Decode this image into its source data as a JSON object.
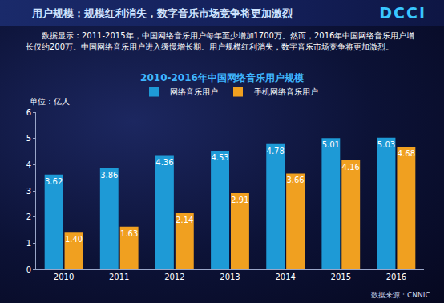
{
  "chart_data": {
    "type": "bar",
    "title": "2010-2016年中国网络音乐用户规模",
    "subtitle": "数据显示：2011-2015年，中国网络音乐用户每年至少增加1700万。然而，2016年中国网络音乐用户增长仅约200万。中国网络音乐用户进入缓慢增长期。用户规模红利消失，数字音乐市场竞争将更加激烈。",
    "annotations": [
      "用户规模：规模红利消失，数字音乐市场竞争将更加激烈",
      "DCCI",
      "数据来源：CNNIC"
    ],
    "y_label": "单位：亿人",
    "categories": [
      "2010",
      "2011",
      "2012",
      "2013",
      "2014",
      "2015",
      "2016"
    ],
    "series": [
      {
        "name": "网络音乐用户",
        "color": "#1e9ad6",
        "values": [
          3.62,
          3.86,
          4.36,
          4.53,
          4.78,
          5.01,
          5.03
        ]
      },
      {
        "name": "手机网络音乐用户",
        "color": "#f0a020",
        "values": [
          1.4,
          1.63,
          2.14,
          2.91,
          3.66,
          4.16,
          4.68
        ],
        "value_labels": [
          "1.40",
          "1.63",
          "2.14",
          "2.91",
          "3.66",
          "4.16",
          "4.68"
        ]
      }
    ],
    "ylim": [
      0,
      6
    ],
    "yticks": [
      0,
      1,
      2,
      3,
      4,
      5,
      6
    ],
    "grid": false,
    "legend": "top",
    "data_labels": true
  }
}
